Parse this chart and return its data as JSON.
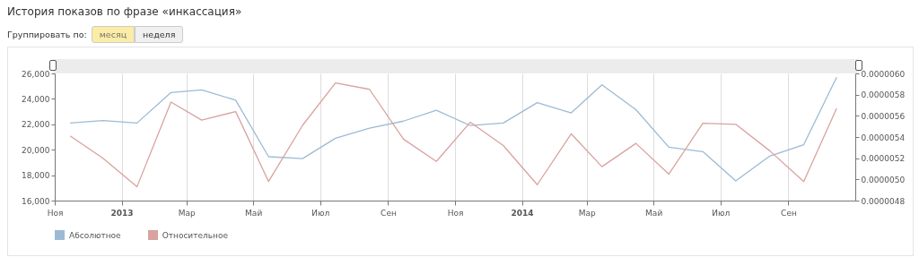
{
  "chart_data": {
    "type": "line",
    "title": "История показов по фразе «инкассация»",
    "annotations": [
      "Группировать по:",
      "месяц",
      "неделя"
    ],
    "x": [
      "2012-11-15",
      "2012-12-15",
      "2013-01-15",
      "2013-02-15",
      "2013-03-15",
      "2013-04-15",
      "2013-05-15",
      "2013-06-15",
      "2013-07-15",
      "2013-08-15",
      "2013-09-15",
      "2013-10-15",
      "2013-11-15",
      "2013-12-15",
      "2014-01-15",
      "2014-02-15",
      "2014-03-15",
      "2014-04-15",
      "2014-05-15",
      "2014-06-15",
      "2014-07-15",
      "2014-08-15",
      "2014-09-15",
      "2014-10-15"
    ],
    "series": [
      {
        "name": "Абсолютное",
        "color": "#9dbad5",
        "values": [
          22100,
          22300,
          22100,
          24500,
          24700,
          23900,
          19450,
          19300,
          20900,
          21700,
          22250,
          23100,
          21900,
          22100,
          23700,
          22900,
          25100,
          23150,
          20200,
          19850,
          17550,
          19500,
          20400,
          25700
        ]
      },
      {
        "name": "Относительное",
        "color": "#d9a29e",
        "axis": "y2",
        "values": [
          5.41e-06,
          5.2e-06,
          4.93e-06,
          5.73e-06,
          5.56e-06,
          5.64e-06,
          4.98e-06,
          5.51e-06,
          5.91e-06,
          5.85e-06,
          5.38e-06,
          5.17e-06,
          5.54e-06,
          5.32e-06,
          4.95e-06,
          5.43e-06,
          5.12e-06,
          5.34e-06,
          5.05e-06,
          5.53e-06,
          5.52e-06,
          5.27e-06,
          4.98e-06,
          5.67e-06
        ]
      }
    ],
    "xlim": [
      "2012-11-01",
      "2014-11-01"
    ],
    "xticks": [
      {
        "value": "2012-11-01",
        "label": "Ноя"
      },
      {
        "value": "2013-01-01",
        "label": "2013"
      },
      {
        "value": "2013-03-01",
        "label": "Мар"
      },
      {
        "value": "2013-05-01",
        "label": "Май"
      },
      {
        "value": "2013-07-01",
        "label": "Июл"
      },
      {
        "value": "2013-09-01",
        "label": "Сен"
      },
      {
        "value": "2013-11-01",
        "label": "Ноя"
      },
      {
        "value": "2014-01-01",
        "label": "2014"
      },
      {
        "value": "2014-03-01",
        "label": "Мар"
      },
      {
        "value": "2014-05-01",
        "label": "Май"
      },
      {
        "value": "2014-07-01",
        "label": "Июл"
      },
      {
        "value": "2014-09-01",
        "label": "Сен"
      }
    ],
    "ylim": [
      16000,
      26000
    ],
    "yticks": [
      {
        "value": 16000,
        "label": "16,000"
      },
      {
        "value": 18000,
        "label": "18,000"
      },
      {
        "value": 20000,
        "label": "20,000"
      },
      {
        "value": 22000,
        "label": "22,000"
      },
      {
        "value": 24000,
        "label": "24,000"
      },
      {
        "value": 26000,
        "label": "26,000"
      }
    ],
    "y2lim": [
      4.8e-06,
      6e-06
    ],
    "y2ticks": [
      {
        "value": 4.8e-06,
        "label": "0.0000048"
      },
      {
        "value": 5e-06,
        "label": "0.0000050"
      },
      {
        "value": 5.2e-06,
        "label": "0.0000052"
      },
      {
        "value": 5.4e-06,
        "label": "0.0000054"
      },
      {
        "value": 5.6e-06,
        "label": "0.0000056"
      },
      {
        "value": 5.8e-06,
        "label": "0.0000058"
      },
      {
        "value": 6e-06,
        "label": "0.0000060"
      }
    ],
    "grid": "x",
    "legend": "bottom left"
  }
}
